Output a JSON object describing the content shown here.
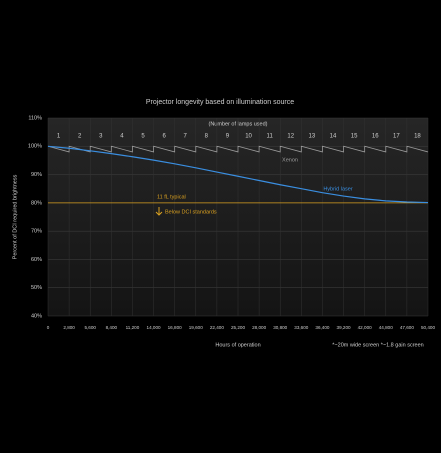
{
  "chart_data": {
    "type": "line",
    "title": "Projector longevity based on illumination source",
    "subtitle": "(Number of lamps used)",
    "x_label": "Hours of operation",
    "y_label": "Percent of DCI required brightness",
    "footnote": "*~20m wide screen *~1.8 gain screen",
    "lamp_labels": [
      1,
      2,
      3,
      4,
      5,
      6,
      7,
      8,
      9,
      10,
      11,
      12,
      13,
      14,
      15,
      16,
      17,
      18
    ],
    "xlim": [
      0,
      50400
    ],
    "xticks": [
      0,
      {
        "value": 2800,
        "label": "2,800"
      },
      {
        "value": 5600,
        "label": "5,600"
      },
      {
        "value": 8400,
        "label": "8,400"
      },
      {
        "value": 11200,
        "label": "11,200"
      },
      {
        "value": 14000,
        "label": "14,000"
      },
      {
        "value": 16800,
        "label": "16,800"
      },
      {
        "value": 19600,
        "label": "19,600"
      },
      {
        "value": 22400,
        "label": "22,400"
      },
      {
        "value": 25200,
        "label": "25,200"
      },
      {
        "value": 28000,
        "label": "28,000"
      },
      {
        "value": 30800,
        "label": "30,800"
      },
      {
        "value": 33600,
        "label": "33,600"
      },
      {
        "value": 36400,
        "label": "36,400"
      },
      {
        "value": 39200,
        "label": "39,200"
      },
      {
        "value": 42000,
        "label": "42,000"
      },
      {
        "value": 44800,
        "label": "44,800"
      },
      {
        "value": 47600,
        "label": "47,600"
      },
      {
        "value": 50400,
        "label": "50,400"
      }
    ],
    "ylim": [
      40,
      110
    ],
    "yticks": [
      {
        "value": 40,
        "label": "40%"
      },
      {
        "value": 50,
        "label": "50%"
      },
      {
        "value": 60,
        "label": "60%"
      },
      {
        "value": 70,
        "label": "70%"
      },
      {
        "value": 80,
        "label": "80%"
      },
      {
        "value": 90,
        "label": "90%"
      },
      {
        "value": 100,
        "label": "100%"
      },
      {
        "value": 110,
        "label": "110%"
      }
    ],
    "grid": true,
    "series": [
      {
        "name": "Xenon",
        "color": "#9a9a9a",
        "x": [
          0,
          2800,
          2800,
          5600,
          5600,
          8400,
          8400,
          11200,
          11200,
          14000,
          14000,
          16800,
          16800,
          19600,
          19600,
          22400,
          22400,
          25200,
          25200,
          28000,
          28000,
          30800,
          30800,
          33600,
          33600,
          36400,
          36400,
          39200,
          39200,
          42000,
          42000,
          44800,
          44800,
          47600,
          47600,
          50400
        ],
        "values": [
          100,
          98,
          100,
          98,
          100,
          98,
          100,
          98,
          100,
          98,
          100,
          98,
          100,
          98,
          100,
          98,
          100,
          98,
          100,
          98,
          100,
          98,
          100,
          98,
          100,
          98,
          100,
          98,
          100,
          98,
          100,
          98,
          100,
          98,
          100,
          98
        ]
      },
      {
        "name": "Hybrid laser",
        "color": "#3a8ee0",
        "x": [
          0,
          2800,
          5600,
          8400,
          11200,
          14000,
          16800,
          19600,
          22400,
          25200,
          28000,
          30800,
          33600,
          36400,
          39200,
          42000,
          44800,
          47600,
          50400
        ],
        "values": [
          100,
          99.3,
          98.4,
          97.4,
          96.3,
          95.1,
          93.8,
          92.4,
          90.9,
          89.4,
          87.9,
          86.4,
          85,
          83.6,
          82.4,
          81.4,
          80.7,
          80.3,
          80.1
        ]
      }
    ],
    "reference_line": {
      "value": 80,
      "label": "11 fL typical",
      "note": "Below DCI standards",
      "color": "#d9a020"
    }
  }
}
